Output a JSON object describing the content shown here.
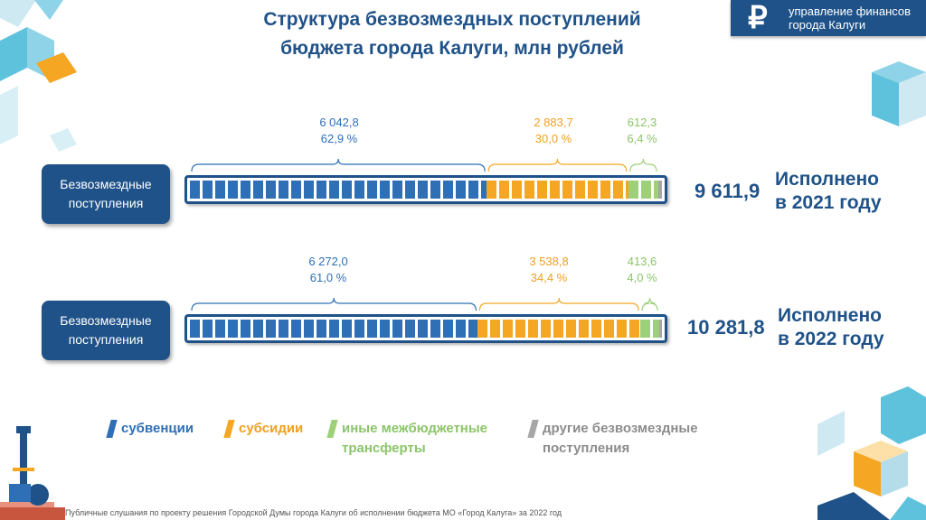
{
  "title": {
    "line1": "Структура безвозмездных поступлений",
    "line2": "бюджета города Калуги, млн рублей"
  },
  "logo": {
    "line1": "управление финансов",
    "line2": "города Калуги",
    "icon": "ruble-icon"
  },
  "colors": {
    "primary": "#1f5289",
    "subventions": "#2e6fb5",
    "subsidies": "#f5a623",
    "transfers": "#9ed07a",
    "other": "#a6a6a6",
    "subventions_label": "#2e6fb5",
    "subsidies_label": "#f0a020",
    "transfers_label": "#8cc56a"
  },
  "chart_data": {
    "type": "bar",
    "title": "Структура безвозмездных поступлений бюджета города Калуги, млн рублей",
    "series_names": [
      "субвенции",
      "субсидии",
      "иные межбюджетные трансферты",
      "другие безвозмездные поступления"
    ],
    "rows": [
      {
        "label": "Безвозмездные поступления",
        "total": 9611.9,
        "total_text": "9 611,9",
        "status_line1": "Исполнено",
        "status_line2": "в 2021 году",
        "segments": [
          {
            "name": "субвенции",
            "value": 6042.8,
            "value_text": "6 042,8",
            "pct_text": "62,9 %"
          },
          {
            "name": "субсидии",
            "value": 2883.7,
            "value_text": "2 883,7",
            "pct_text": "30,0 %"
          },
          {
            "name": "иные межбюджетные трансферты",
            "value": 612.3,
            "value_text": "612,3",
            "pct_text": "6,4 %"
          },
          {
            "name": "другие безвозмездные поступления",
            "value": 73.1
          }
        ]
      },
      {
        "label": "Безвозмездные поступления",
        "total": 10281.8,
        "total_text": "10 281,8",
        "status_line1": "Исполнено",
        "status_line2": "в 2022 году",
        "segments": [
          {
            "name": "субвенции",
            "value": 6272.0,
            "value_text": "6 272,0",
            "pct_text": "61,0 %"
          },
          {
            "name": "субсидии",
            "value": 3538.8,
            "value_text": "3 538,8",
            "pct_text": "34,4 %"
          },
          {
            "name": "иные межбюджетные трансферты",
            "value": 413.6,
            "value_text": "413,6",
            "pct_text": "4,0 %"
          },
          {
            "name": "другие безвозмездные поступления",
            "value": 57.4
          }
        ]
      }
    ],
    "legend": [
      {
        "label": "субвенции"
      },
      {
        "label": "субсидии"
      },
      {
        "label": "иные межбюджетные трансферты"
      },
      {
        "label": "другие безвозмездные поступления"
      }
    ]
  },
  "footer": "Публичные слушания по проекту решения Городской Думы города Калуги об исполнении бюджета МО «Город Калуга» за 2022 год"
}
